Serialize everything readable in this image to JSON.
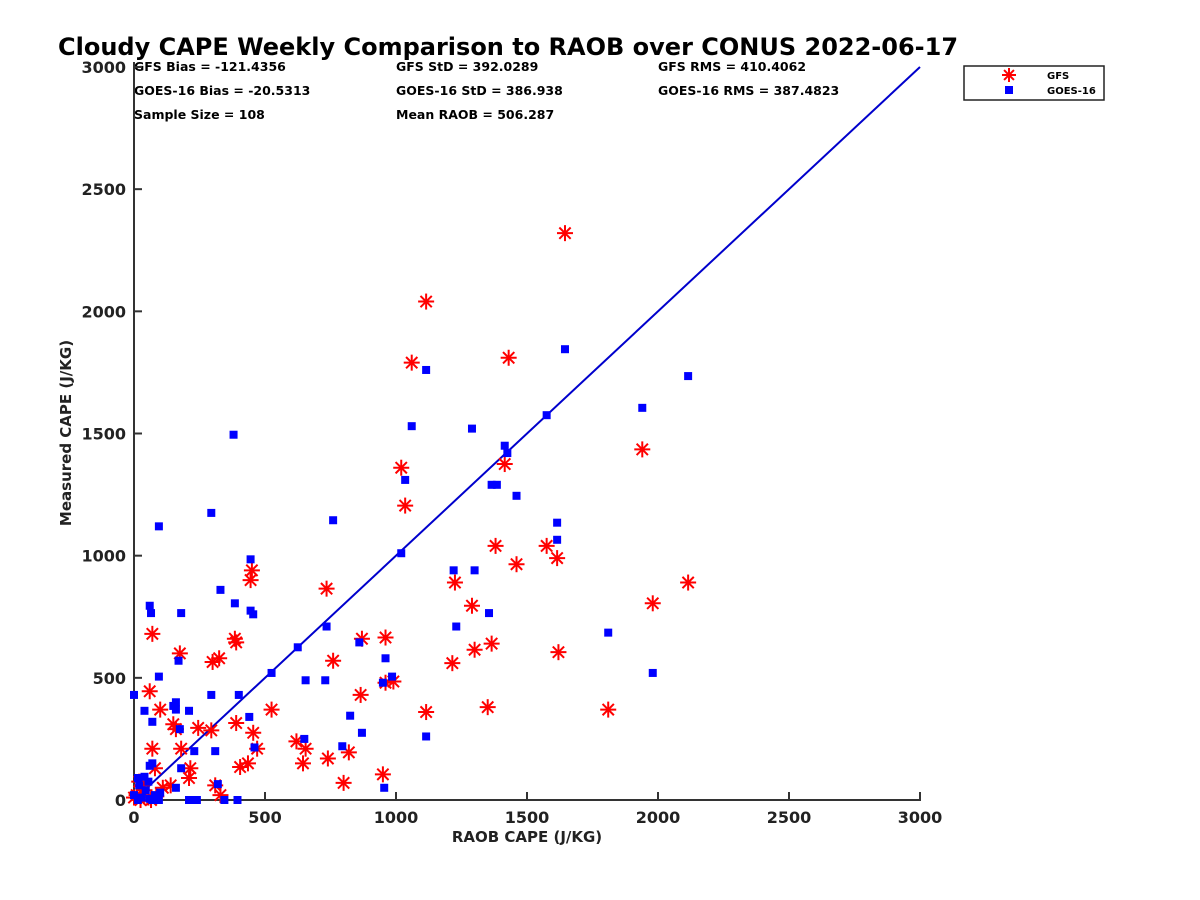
{
  "chart_data": {
    "type": "scatter",
    "title": "Cloudy CAPE Weekly Comparison to RAOB over CONUS 2022-06-17",
    "xlabel": "RAOB CAPE (J/KG)",
    "ylabel": "Measured CAPE (J/KG)",
    "xlim": [
      0,
      3000
    ],
    "ylim": [
      0,
      3000
    ],
    "xticks": [
      0,
      500,
      1000,
      1500,
      2000,
      2500,
      3000
    ],
    "yticks": [
      0,
      500,
      1000,
      1500,
      2000,
      2500,
      3000
    ],
    "grid": false,
    "legend_position": "top-right",
    "stats": [
      {
        "label": "GFS Bias = -121.4356"
      },
      {
        "label": "GOES-16 Bias = -20.5313"
      },
      {
        "label": "Sample Size = 108"
      },
      {
        "label": "GFS StD = 392.0289"
      },
      {
        "label": "GOES-16 StD = 386.938"
      },
      {
        "label": "Mean RAOB = 506.287"
      },
      {
        "label": "GFS RMS = 410.4062"
      },
      {
        "label": "GOES-16 RMS = 387.4823"
      }
    ],
    "reference_line": {
      "name": "1:1 line",
      "x": [
        0,
        3000
      ],
      "y": [
        0,
        3000
      ],
      "color": "#0000cc"
    },
    "series": [
      {
        "name": "GFS",
        "marker": "asterisk",
        "color": "#ff0000",
        "points": [
          [
            1645,
            2320
          ],
          [
            1115,
            2040
          ],
          [
            1060,
            1790
          ],
          [
            1430,
            1810
          ],
          [
            1940,
            1435
          ],
          [
            1020,
            1360
          ],
          [
            1415,
            1375
          ],
          [
            1035,
            1205
          ],
          [
            1380,
            1040
          ],
          [
            1575,
            1040
          ],
          [
            1615,
            990
          ],
          [
            1460,
            965
          ],
          [
            450,
            940
          ],
          [
            445,
            900
          ],
          [
            1225,
            890
          ],
          [
            2115,
            890
          ],
          [
            735,
            865
          ],
          [
            1290,
            795
          ],
          [
            1980,
            805
          ],
          [
            70,
            680
          ],
          [
            385,
            660
          ],
          [
            390,
            645
          ],
          [
            870,
            660
          ],
          [
            960,
            665
          ],
          [
            175,
            600
          ],
          [
            325,
            580
          ],
          [
            300,
            565
          ],
          [
            1300,
            615
          ],
          [
            1365,
            640
          ],
          [
            1620,
            605
          ],
          [
            760,
            570
          ],
          [
            1215,
            560
          ],
          [
            60,
            445
          ],
          [
            865,
            430
          ],
          [
            960,
            480
          ],
          [
            990,
            485
          ],
          [
            100,
            370
          ],
          [
            525,
            370
          ],
          [
            1115,
            360
          ],
          [
            1350,
            380
          ],
          [
            1810,
            370
          ],
          [
            150,
            310
          ],
          [
            160,
            290
          ],
          [
            390,
            315
          ],
          [
            455,
            275
          ],
          [
            245,
            295
          ],
          [
            295,
            285
          ],
          [
            70,
            210
          ],
          [
            180,
            210
          ],
          [
            470,
            210
          ],
          [
            620,
            240
          ],
          [
            655,
            210
          ],
          [
            645,
            150
          ],
          [
            740,
            170
          ],
          [
            820,
            195
          ],
          [
            80,
            130
          ],
          [
            215,
            130
          ],
          [
            405,
            135
          ],
          [
            435,
            150
          ],
          [
            950,
            105
          ],
          [
            210,
            90
          ],
          [
            140,
            60
          ],
          [
            310,
            60
          ],
          [
            330,
            20
          ],
          [
            800,
            70
          ],
          [
            20,
            75
          ],
          [
            40,
            40
          ],
          [
            10,
            20
          ],
          [
            55,
            10
          ],
          [
            85,
            15
          ],
          [
            25,
            0
          ],
          [
            65,
            0
          ],
          [
            110,
            50
          ],
          [
            0,
            10
          ],
          [
            30,
            60
          ]
        ]
      },
      {
        "name": "GOES-16",
        "marker": "square",
        "color": "#0000ff",
        "points": [
          [
            1645,
            1845
          ],
          [
            1115,
            1760
          ],
          [
            2115,
            1735
          ],
          [
            1940,
            1605
          ],
          [
            1575,
            1575
          ],
          [
            1060,
            1530
          ],
          [
            1290,
            1520
          ],
          [
            380,
            1495
          ],
          [
            1415,
            1450
          ],
          [
            1425,
            1420
          ],
          [
            1365,
            1290
          ],
          [
            1385,
            1290
          ],
          [
            1460,
            1245
          ],
          [
            1035,
            1310
          ],
          [
            295,
            1175
          ],
          [
            95,
            1120
          ],
          [
            760,
            1145
          ],
          [
            1615,
            1135
          ],
          [
            1615,
            1065
          ],
          [
            1020,
            1010
          ],
          [
            445,
            985
          ],
          [
            1220,
            940
          ],
          [
            1300,
            940
          ],
          [
            330,
            860
          ],
          [
            385,
            805
          ],
          [
            60,
            795
          ],
          [
            65,
            765
          ],
          [
            180,
            765
          ],
          [
            445,
            775
          ],
          [
            455,
            760
          ],
          [
            1230,
            710
          ],
          [
            735,
            710
          ],
          [
            1355,
            765
          ],
          [
            1810,
            685
          ],
          [
            860,
            645
          ],
          [
            625,
            625
          ],
          [
            170,
            570
          ],
          [
            960,
            580
          ],
          [
            95,
            505
          ],
          [
            525,
            520
          ],
          [
            1980,
            520
          ],
          [
            985,
            505
          ],
          [
            0,
            430
          ],
          [
            295,
            430
          ],
          [
            400,
            430
          ],
          [
            655,
            490
          ],
          [
            730,
            490
          ],
          [
            950,
            480
          ],
          [
            160,
            400
          ],
          [
            150,
            385
          ],
          [
            160,
            370
          ],
          [
            210,
            365
          ],
          [
            40,
            365
          ],
          [
            440,
            340
          ],
          [
            825,
            345
          ],
          [
            70,
            320
          ],
          [
            175,
            290
          ],
          [
            870,
            275
          ],
          [
            1115,
            260
          ],
          [
            460,
            215
          ],
          [
            650,
            250
          ],
          [
            795,
            220
          ],
          [
            230,
            200
          ],
          [
            310,
            200
          ],
          [
            70,
            150
          ],
          [
            60,
            140
          ],
          [
            180,
            130
          ],
          [
            160,
            50
          ],
          [
            320,
            65
          ],
          [
            955,
            50
          ],
          [
            210,
            0
          ],
          [
            240,
            0
          ],
          [
            345,
            0
          ],
          [
            395,
            0
          ],
          [
            15,
            90
          ],
          [
            40,
            95
          ],
          [
            55,
            75
          ],
          [
            20,
            60
          ],
          [
            45,
            40
          ],
          [
            0,
            20
          ],
          [
            30,
            10
          ],
          [
            60,
            5
          ],
          [
            80,
            20
          ],
          [
            100,
            30
          ],
          [
            15,
            0
          ],
          [
            70,
            0
          ],
          [
            95,
            0
          ]
        ]
      }
    ]
  }
}
